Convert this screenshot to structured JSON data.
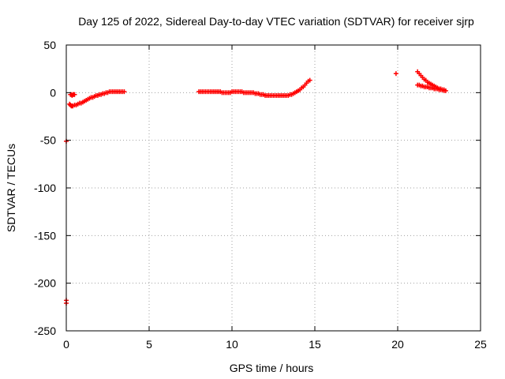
{
  "chart_data": {
    "type": "scatter",
    "title": "Day 125 of 2022, Sidereal Day-to-day VTEC variation (SDTVAR) for receiver sjrp",
    "xlabel": "GPS time / hours",
    "ylabel": "SDTVAR / TECUs",
    "xlim": [
      0,
      25
    ],
    "ylim": [
      -250,
      50
    ],
    "xticks": [
      0,
      5,
      10,
      15,
      20,
      25
    ],
    "yticks": [
      -250,
      -200,
      -150,
      -100,
      -50,
      0,
      50
    ],
    "grid": true,
    "series_color": "#ff0000",
    "points": [
      [
        0.0,
        -51
      ],
      [
        0.0,
        -218
      ],
      [
        0.0,
        -221
      ],
      [
        0.25,
        -2
      ],
      [
        0.3,
        -2
      ],
      [
        0.35,
        -3
      ],
      [
        0.4,
        -2
      ],
      [
        0.45,
        -2
      ],
      [
        0.5,
        -2
      ],
      [
        0.2,
        -12
      ],
      [
        0.25,
        -13
      ],
      [
        0.3,
        -14
      ],
      [
        0.35,
        -14
      ],
      [
        0.4,
        -14
      ],
      [
        0.5,
        -13
      ],
      [
        0.6,
        -13
      ],
      [
        0.7,
        -12
      ],
      [
        0.8,
        -11
      ],
      [
        0.9,
        -11
      ],
      [
        1.0,
        -10
      ],
      [
        1.1,
        -9
      ],
      [
        1.2,
        -8
      ],
      [
        1.3,
        -7
      ],
      [
        1.4,
        -6
      ],
      [
        1.5,
        -5
      ],
      [
        1.6,
        -5
      ],
      [
        1.7,
        -4
      ],
      [
        1.8,
        -3
      ],
      [
        1.9,
        -3
      ],
      [
        2.0,
        -2
      ],
      [
        2.1,
        -2
      ],
      [
        2.2,
        -1
      ],
      [
        2.3,
        -1
      ],
      [
        2.4,
        0
      ],
      [
        2.5,
        0
      ],
      [
        2.6,
        1
      ],
      [
        2.7,
        1
      ],
      [
        2.8,
        1
      ],
      [
        2.9,
        1
      ],
      [
        3.0,
        1
      ],
      [
        3.1,
        1
      ],
      [
        3.2,
        1
      ],
      [
        3.3,
        1
      ],
      [
        3.4,
        1
      ],
      [
        3.5,
        1
      ],
      [
        8.0,
        1
      ],
      [
        8.1,
        1
      ],
      [
        8.2,
        1
      ],
      [
        8.3,
        1
      ],
      [
        8.4,
        1
      ],
      [
        8.5,
        1
      ],
      [
        8.6,
        1
      ],
      [
        8.7,
        1
      ],
      [
        8.8,
        1
      ],
      [
        8.9,
        1
      ],
      [
        9.0,
        1
      ],
      [
        9.1,
        1
      ],
      [
        9.2,
        1
      ],
      [
        9.3,
        1
      ],
      [
        9.4,
        0
      ],
      [
        9.5,
        0
      ],
      [
        9.6,
        0
      ],
      [
        9.7,
        0
      ],
      [
        9.8,
        0
      ],
      [
        9.9,
        0
      ],
      [
        10.0,
        1
      ],
      [
        10.1,
        1
      ],
      [
        10.2,
        1
      ],
      [
        10.3,
        1
      ],
      [
        10.4,
        1
      ],
      [
        10.5,
        1
      ],
      [
        10.6,
        1
      ],
      [
        10.7,
        0
      ],
      [
        10.8,
        0
      ],
      [
        10.9,
        0
      ],
      [
        11.0,
        0
      ],
      [
        11.1,
        0
      ],
      [
        11.2,
        0
      ],
      [
        11.3,
        0
      ],
      [
        11.4,
        -1
      ],
      [
        11.5,
        -1
      ],
      [
        11.6,
        -1
      ],
      [
        11.7,
        -2
      ],
      [
        11.8,
        -2
      ],
      [
        11.9,
        -2
      ],
      [
        12.0,
        -3
      ],
      [
        12.1,
        -3
      ],
      [
        12.2,
        -3
      ],
      [
        12.3,
        -3
      ],
      [
        12.4,
        -3
      ],
      [
        12.5,
        -3
      ],
      [
        12.6,
        -3
      ],
      [
        12.7,
        -3
      ],
      [
        12.8,
        -3
      ],
      [
        12.9,
        -3
      ],
      [
        13.0,
        -3
      ],
      [
        13.1,
        -3
      ],
      [
        13.2,
        -3
      ],
      [
        13.3,
        -3
      ],
      [
        13.4,
        -3
      ],
      [
        13.5,
        -2
      ],
      [
        13.6,
        -2
      ],
      [
        13.7,
        -1
      ],
      [
        13.8,
        0
      ],
      [
        13.9,
        1
      ],
      [
        14.0,
        2
      ],
      [
        14.1,
        3
      ],
      [
        14.2,
        5
      ],
      [
        14.3,
        6
      ],
      [
        14.4,
        8
      ],
      [
        14.5,
        10
      ],
      [
        14.6,
        12
      ],
      [
        14.7,
        13
      ],
      [
        19.9,
        20
      ],
      [
        21.2,
        22
      ],
      [
        21.3,
        20
      ],
      [
        21.4,
        18
      ],
      [
        21.5,
        16
      ],
      [
        21.6,
        14
      ],
      [
        21.7,
        13
      ],
      [
        21.8,
        11
      ],
      [
        21.9,
        10
      ],
      [
        22.0,
        9
      ],
      [
        22.1,
        8
      ],
      [
        22.2,
        7
      ],
      [
        22.3,
        6
      ],
      [
        22.4,
        5
      ],
      [
        22.5,
        4
      ],
      [
        22.6,
        4
      ],
      [
        22.7,
        3
      ],
      [
        22.8,
        3
      ],
      [
        21.2,
        8
      ],
      [
        21.3,
        8
      ],
      [
        21.4,
        7
      ],
      [
        21.5,
        7
      ],
      [
        21.6,
        6
      ],
      [
        21.7,
        6
      ],
      [
        21.8,
        6
      ],
      [
        21.9,
        5
      ],
      [
        22.0,
        5
      ],
      [
        22.1,
        5
      ],
      [
        22.2,
        4
      ],
      [
        22.3,
        4
      ],
      [
        22.4,
        4
      ],
      [
        22.5,
        3
      ],
      [
        22.6,
        3
      ],
      [
        22.7,
        3
      ],
      [
        22.8,
        2
      ],
      [
        22.9,
        2
      ]
    ]
  }
}
